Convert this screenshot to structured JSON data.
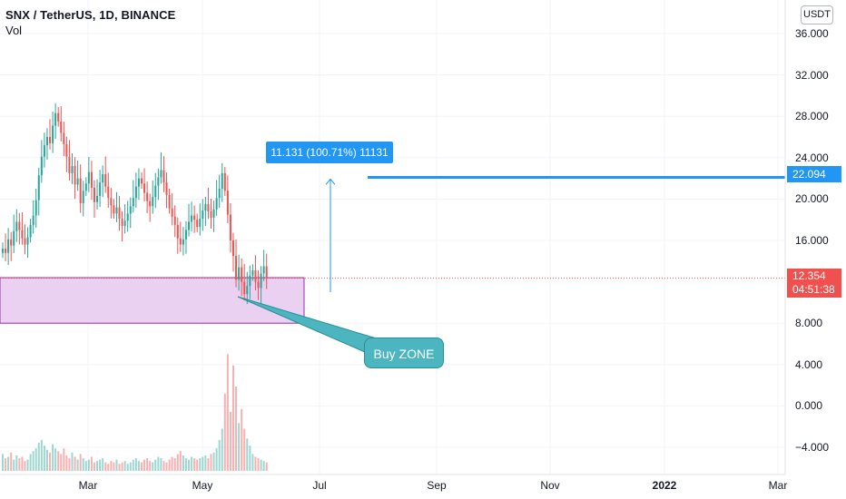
{
  "header": {
    "symbol_line": "SNX / TetherUS, 1D, BINANCE",
    "volume_label": "Vol"
  },
  "currency_button": "USDT",
  "colors": {
    "up": "#26a69a",
    "down": "#ef5350",
    "accent": "#2196f3",
    "zone_fill": "#e8c9ee",
    "zone_border": "#9c27b0",
    "callout": "#4cb6c0"
  },
  "annotations": {
    "measure_label": "11.131 (100.71%) 11131",
    "target_price_label": "22.094",
    "current_price_label": "12.354",
    "countdown_label": "04:51:38",
    "zone_callout": "Buy ZONE"
  },
  "chart_data": {
    "type": "candlestick",
    "title": "SNX / TetherUS, 1D, BINANCE",
    "y_ticks": [
      "36.000",
      "32.000",
      "28.000",
      "24.000",
      "20.000",
      "16.000",
      "8.000",
      "4.000",
      "0.000",
      "−4.000"
    ],
    "x_ticks": [
      "Mar",
      "May",
      "Jul",
      "Sep",
      "Nov",
      "2022",
      "Mar"
    ],
    "ylim": [
      -6.5,
      38
    ],
    "current_price": 12.354,
    "target_price": 22.094,
    "buy_zone": [
      8.0,
      12.4
    ],
    "measure": {
      "from": 11.0,
      "to": 22.1
    },
    "closes": [
      15.2,
      14.8,
      16.1,
      15.5,
      16.9,
      17.8,
      17.0,
      16.2,
      15.6,
      16.3,
      17.5,
      18.4,
      19.9,
      22.3,
      24.1,
      25.2,
      26.0,
      25.4,
      27.1,
      28.3,
      27.5,
      26.4,
      25.3,
      24.1,
      22.5,
      23.2,
      21.4,
      22.0,
      19.6,
      20.8,
      21.5,
      22.6,
      21.1,
      19.7,
      20.3,
      21.6,
      22.4,
      21.2,
      20.1,
      19.4,
      18.6,
      19.2,
      18.1,
      17.4,
      17.9,
      18.6,
      19.3,
      20.1,
      21.2,
      22.0,
      21.5,
      20.6,
      19.8,
      19.3,
      20.2,
      21.3,
      22.1,
      22.8,
      21.6,
      20.4,
      19.1,
      18.3,
      17.5,
      16.2,
      15.6,
      16.1,
      17.0,
      17.8,
      18.4,
      18.0,
      17.3,
      18.1,
      18.9,
      19.5,
      18.8,
      18.2,
      19.0,
      20.1,
      21.0,
      22.5,
      20.8,
      18.5,
      16.0,
      14.5,
      12.2,
      13.4,
      12.0,
      10.8,
      11.6,
      12.6,
      13.1,
      12.0,
      11.4,
      12.8,
      13.5,
      12.354
    ],
    "volume": [
      1.2,
      0.9,
      1.0,
      1.3,
      0.8,
      1.1,
      0.9,
      1.0,
      0.7,
      0.8,
      1.2,
      1.4,
      1.6,
      2.0,
      2.2,
      1.8,
      1.5,
      1.3,
      1.9,
      1.6,
      1.4,
      1.2,
      1.6,
      1.1,
      0.9,
      1.3,
      1.0,
      0.8,
      1.2,
      0.9,
      0.7,
      0.8,
      1.0,
      0.6,
      0.7,
      0.8,
      0.9,
      0.6,
      0.5,
      0.7,
      0.6,
      0.8,
      0.5,
      0.6,
      0.7,
      0.5,
      0.6,
      0.8,
      0.9,
      0.7,
      0.6,
      0.8,
      0.9,
      0.7,
      0.6,
      0.8,
      1.0,
      0.9,
      0.7,
      0.6,
      0.8,
      1.0,
      0.9,
      1.2,
      1.4,
      1.1,
      0.9,
      0.8,
      1.0,
      0.9,
      0.8,
      0.9,
      1.0,
      1.1,
      0.9,
      1.2,
      1.3,
      1.6,
      2.2,
      3.0,
      5.5,
      8.3,
      4.2,
      7.5,
      6.0,
      3.4,
      4.4,
      3.0,
      2.3,
      1.8,
      1.2,
      1.0,
      0.9,
      0.8,
      0.7,
      0.6
    ]
  }
}
